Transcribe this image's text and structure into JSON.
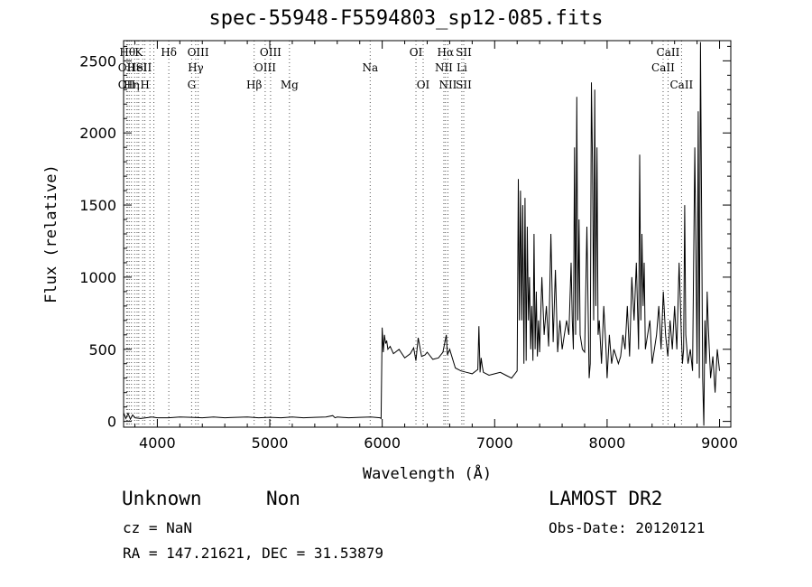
{
  "title": "spec-55948-F5594803_sp12-085.fits",
  "info": {
    "class": "Unknown",
    "subclass": "Non",
    "survey": "LAMOST DR2",
    "cz": "cz = NaN",
    "obs_date": "Obs-Date: 20120121",
    "radec": "RA = 147.21621, DEC =  31.53879"
  },
  "chart_data": {
    "type": "line",
    "title": "spec-55948-F5594803_sp12-085.fits",
    "xlabel": "Wavelength (Å)",
    "ylabel": "Flux (relative)",
    "xlim": [
      3700,
      9100
    ],
    "ylim": [
      -40,
      2640
    ],
    "xticks": [
      4000,
      5000,
      6000,
      7000,
      8000,
      9000
    ],
    "yticks": [
      0,
      500,
      1000,
      1500,
      2000,
      2500
    ],
    "grid": false,
    "series": [
      {
        "x": [
          3700,
          3720,
          3740,
          3760,
          3780,
          3800,
          3850,
          3900,
          3950,
          4000,
          4100,
          4200,
          4300,
          4400,
          4500,
          4600,
          4700,
          4800,
          4900,
          5000,
          5100,
          5200,
          5300,
          5400,
          5500,
          5560,
          5580,
          5600,
          5700,
          5800,
          5900,
          5980,
          5990,
          6000,
          6010,
          6020,
          6030,
          6040,
          6050,
          6070,
          6100,
          6150,
          6200,
          6250,
          6280,
          6300,
          6320,
          6350,
          6380,
          6400,
          6450,
          6500,
          6540,
          6560,
          6570,
          6580,
          6600,
          6650,
          6700,
          6750,
          6800,
          6850,
          6860,
          6870,
          6880,
          6890,
          6900,
          6950,
          7000,
          7050,
          7100,
          7150,
          7180,
          7200,
          7210,
          7220,
          7230,
          7240,
          7250,
          7260,
          7270,
          7280,
          7290,
          7300,
          7310,
          7320,
          7330,
          7340,
          7350,
          7360,
          7370,
          7380,
          7390,
          7400,
          7420,
          7440,
          7460,
          7480,
          7500,
          7520,
          7540,
          7560,
          7580,
          7600,
          7620,
          7640,
          7660,
          7680,
          7690,
          7700,
          7710,
          7720,
          7730,
          7740,
          7750,
          7760,
          7780,
          7800,
          7820,
          7840,
          7850,
          7860,
          7870,
          7880,
          7890,
          7900,
          7910,
          7920,
          7930,
          7950,
          7970,
          7990,
          8000,
          8020,
          8040,
          8060,
          8080,
          8100,
          8120,
          8140,
          8160,
          8180,
          8200,
          8220,
          8240,
          8260,
          8280,
          8290,
          8300,
          8310,
          8320,
          8330,
          8340,
          8360,
          8380,
          8400,
          8420,
          8440,
          8460,
          8480,
          8500,
          8520,
          8540,
          8560,
          8580,
          8600,
          8620,
          8640,
          8660,
          8670,
          8680,
          8690,
          8700,
          8720,
          8740,
          8760,
          8780,
          8800,
          8810,
          8820,
          8830,
          8840,
          8850,
          8860,
          8870,
          8880,
          8890,
          8900,
          8920,
          8940,
          8960,
          8980,
          9000
        ],
        "y": [
          60,
          20,
          55,
          15,
          45,
          25,
          20,
          25,
          30,
          25,
          25,
          30,
          28,
          25,
          30,
          25,
          28,
          30,
          25,
          28,
          25,
          30,
          25,
          28,
          30,
          40,
          25,
          30,
          25,
          28,
          30,
          25,
          20,
          650,
          480,
          600,
          540,
          560,
          500,
          520,
          470,
          500,
          440,
          470,
          510,
          420,
          580,
          450,
          460,
          480,
          430,
          440,
          480,
          560,
          600,
          460,
          500,
          370,
          350,
          340,
          330,
          360,
          660,
          340,
          440,
          380,
          340,
          320,
          330,
          340,
          320,
          300,
          330,
          350,
          1680,
          700,
          1600,
          700,
          1500,
          400,
          1550,
          420,
          1350,
          700,
          1000,
          500,
          800,
          420,
          1300,
          500,
          900,
          450,
          700,
          480,
          1000,
          600,
          800,
          520,
          1300,
          550,
          1050,
          480,
          700,
          500,
          600,
          700,
          600,
          1100,
          700,
          500,
          1900,
          600,
          2250,
          700,
          1400,
          600,
          500,
          480,
          1350,
          300,
          400,
          2350,
          1800,
          700,
          2300,
          800,
          1900,
          600,
          700,
          400,
          800,
          500,
          300,
          600,
          400,
          500,
          450,
          400,
          450,
          600,
          500,
          800,
          450,
          1000,
          700,
          1100,
          500,
          1850,
          700,
          1300,
          800,
          1100,
          500,
          600,
          700,
          400,
          500,
          600,
          800,
          500,
          900,
          600,
          450,
          700,
          500,
          800,
          500,
          1100,
          600,
          400,
          500,
          1500,
          600,
          400,
          500,
          350,
          1900,
          400,
          2150,
          300,
          2630,
          1500,
          300,
          -30,
          700,
          400,
          900,
          650,
          300,
          450,
          200,
          500,
          350
        ]
      }
    ],
    "line_labels": [
      {
        "wave": 3734,
        "text": "Hθ",
        "row": 1
      },
      {
        "wave": 3727,
        "text": "OII",
        "row": 2
      },
      {
        "wave": 3727,
        "text": "OII",
        "row": 3
      },
      {
        "wave": 3770,
        "text": "Hη",
        "row": 3
      },
      {
        "wave": 3834,
        "text": "K",
        "row": 1
      },
      {
        "wave": 3820,
        "text": "HeI",
        "row": 2
      },
      {
        "wave": 3889,
        "text": "H",
        "row": 3
      },
      {
        "wave": 3880,
        "text": "SII",
        "row": 2
      },
      {
        "wave": 4102,
        "text": "Hδ",
        "row": 1
      },
      {
        "wave": 4363,
        "text": "OIII",
        "row": 1
      },
      {
        "wave": 4341,
        "text": "Hγ",
        "row": 2
      },
      {
        "wave": 4305,
        "text": "G",
        "row": 3
      },
      {
        "wave": 5007,
        "text": "OIII",
        "row": 1
      },
      {
        "wave": 4959,
        "text": "OIII",
        "row": 2
      },
      {
        "wave": 4861,
        "text": "Hβ",
        "row": 3
      },
      {
        "wave": 5175,
        "text": "Mg",
        "row": 3
      },
      {
        "wave": 5893,
        "text": "Na",
        "row": 2
      },
      {
        "wave": 6300,
        "text": "OI",
        "row": 1
      },
      {
        "wave": 6364,
        "text": "OI",
        "row": 3
      },
      {
        "wave": 6563,
        "text": "Hα",
        "row": 1
      },
      {
        "wave": 6548,
        "text": "NII",
        "row": 2
      },
      {
        "wave": 6584,
        "text": "NII",
        "row": 3
      },
      {
        "wave": 6725,
        "text": "SII",
        "row": 1
      },
      {
        "wave": 6708,
        "text": "Li",
        "row": 2
      },
      {
        "wave": 6725,
        "text": "SII",
        "row": 3
      },
      {
        "wave": 8542,
        "text": "CaII",
        "row": 1
      },
      {
        "wave": 8498,
        "text": "CaII",
        "row": 2
      },
      {
        "wave": 8662,
        "text": "CaII",
        "row": 3
      }
    ],
    "line_marks": [
      3727,
      3734,
      3750,
      3770,
      3798,
      3820,
      3835,
      3870,
      3889,
      3934,
      3969,
      4102,
      4305,
      4341,
      4363,
      4861,
      4959,
      5007,
      5175,
      5893,
      6300,
      6364,
      6548,
      6563,
      6584,
      6708,
      6725,
      8498,
      8542,
      8662
    ]
  }
}
